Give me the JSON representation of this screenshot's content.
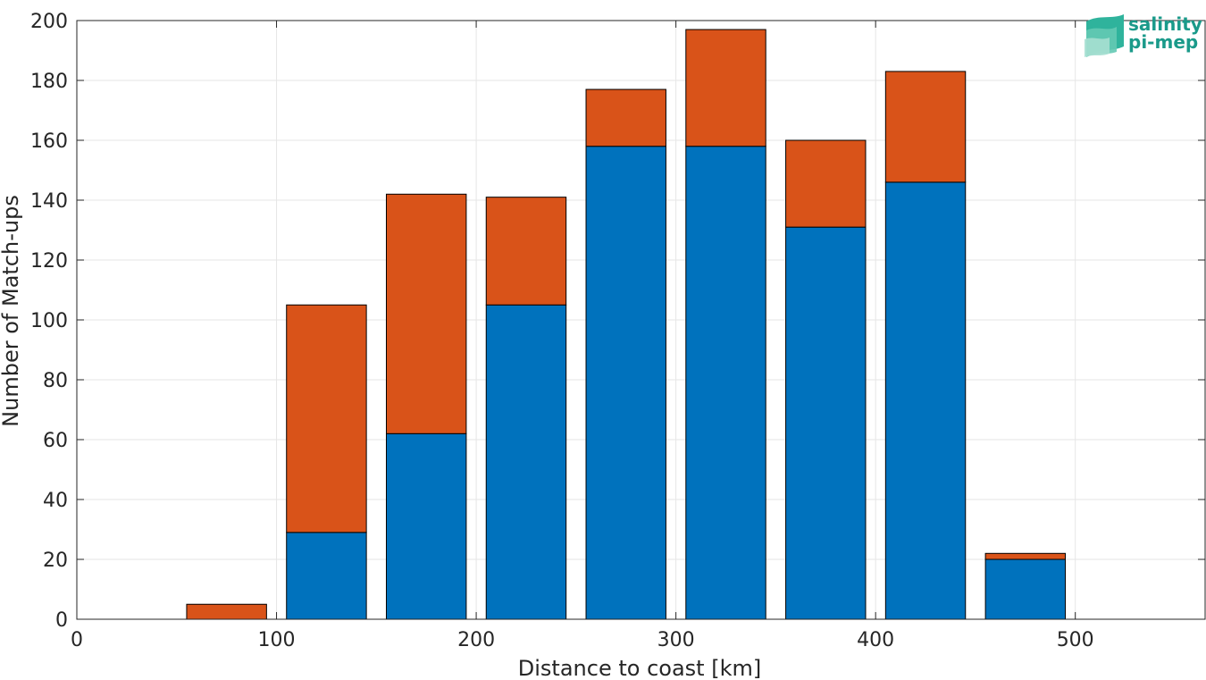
{
  "chart_data": {
    "type": "bar",
    "stacked": true,
    "title": "",
    "xlabel": "Distance to coast [km]",
    "ylabel": "Number of Match-ups",
    "x": [
      25,
      75,
      125,
      175,
      225,
      275,
      325,
      375,
      425,
      475,
      525
    ],
    "bar_width_km": 40,
    "series": [
      {
        "color": "#0072BD",
        "values": [
          0,
          0,
          29,
          62,
          105,
          158,
          158,
          131,
          146,
          20,
          0
        ]
      },
      {
        "color": "#D95319",
        "values": [
          0,
          5,
          76,
          80,
          36,
          19,
          39,
          29,
          37,
          2,
          0
        ]
      }
    ],
    "xlim": [
      0,
      565
    ],
    "ylim": [
      0,
      200
    ],
    "xticks": [
      0,
      100,
      200,
      300,
      400,
      500
    ],
    "yticks": [
      0,
      20,
      40,
      60,
      80,
      100,
      120,
      140,
      160,
      180,
      200
    ],
    "grid": true
  },
  "logo": {
    "line1": "salinity",
    "line2": "pi-mep",
    "icon": "waves-icon",
    "color": "#1a9a8a"
  }
}
